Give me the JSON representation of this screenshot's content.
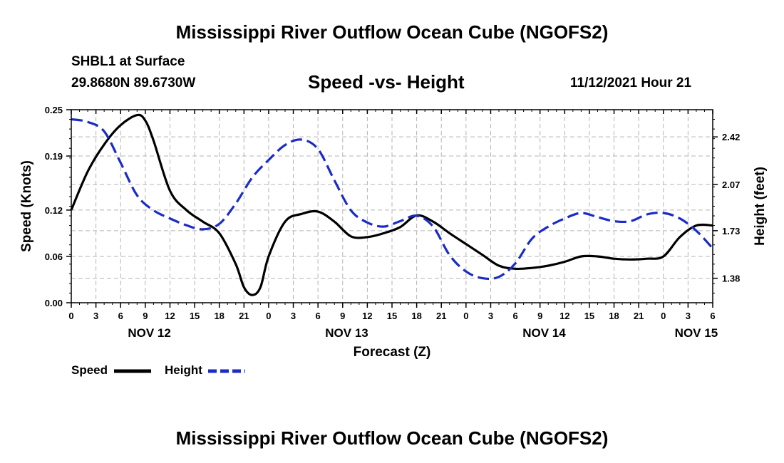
{
  "header": {
    "title": "Mississippi River Outflow Ocean Cube (NGOFS2)",
    "station": "SHBL1 at Surface",
    "coords": "29.8680N  89.6730W",
    "subtitle": "Speed -vs- Height",
    "datetime": "11/12/2021 Hour 21"
  },
  "footer": {
    "title": "Mississippi River Outflow Ocean Cube (NGOFS2)"
  },
  "legend": {
    "speed_label": "Speed",
    "height_label": "Height"
  },
  "chart_data": {
    "type": "line",
    "title": "Speed -vs- Height",
    "xlabel": "Forecast (Z)",
    "ylabel_left": "Speed (Knots)",
    "ylabel_right": "Height (feet)",
    "x_unit": "forecast hours from 00Z Nov 12",
    "xlim": [
      0,
      78
    ],
    "x_ticks": [
      0,
      3,
      6,
      9,
      12,
      15,
      18,
      21,
      24,
      27,
      30,
      33,
      36,
      39,
      42,
      45,
      48,
      51,
      54,
      57,
      60,
      63,
      66,
      69,
      72,
      75,
      78
    ],
    "x_tick_labels": [
      "0",
      "3",
      "6",
      "9",
      "12",
      "15",
      "18",
      "21",
      "0",
      "3",
      "6",
      "9",
      "12",
      "15",
      "18",
      "21",
      "0",
      "3",
      "6",
      "9",
      "12",
      "15",
      "18",
      "21",
      "0",
      "3",
      "6"
    ],
    "date_labels": [
      {
        "x": 9.5,
        "label": "NOV 12"
      },
      {
        "x": 33.5,
        "label": "NOV 13"
      },
      {
        "x": 57.5,
        "label": "NOV 14"
      },
      {
        "x": 76,
        "label": "NOV 15"
      }
    ],
    "ylim_left": [
      0,
      0.25
    ],
    "y_ticks_left": [
      0.0,
      0.06,
      0.12,
      0.19,
      0.25
    ],
    "y_tick_labels_left": [
      "0.00",
      "0.06",
      "0.12",
      "0.19",
      "0.25"
    ],
    "ylim_right": [
      1.2,
      2.62
    ],
    "y_ticks_right": [
      1.38,
      1.73,
      2.07,
      2.42
    ],
    "y_tick_labels_right": [
      "1.38",
      "1.73",
      "2.07",
      "2.42"
    ],
    "grid": true,
    "series": [
      {
        "name": "Speed",
        "axis": "left",
        "color": "#000000",
        "dash": "solid",
        "x": [
          0,
          2,
          4,
          6,
          8,
          9,
          10,
          12,
          14,
          16,
          18,
          20,
          21,
          22,
          23,
          24,
          26,
          28,
          30,
          32,
          34,
          36,
          38,
          40,
          42,
          44,
          46,
          48,
          50,
          52,
          54,
          56,
          58,
          60,
          62,
          64,
          66,
          68,
          70,
          72,
          74,
          76,
          78
        ],
        "y": [
          0.12,
          0.17,
          0.205,
          0.23,
          0.243,
          0.236,
          0.21,
          0.145,
          0.12,
          0.105,
          0.09,
          0.05,
          0.02,
          0.01,
          0.02,
          0.06,
          0.105,
          0.115,
          0.118,
          0.105,
          0.086,
          0.085,
          0.09,
          0.098,
          0.113,
          0.105,
          0.09,
          0.076,
          0.062,
          0.048,
          0.044,
          0.045,
          0.048,
          0.053,
          0.06,
          0.06,
          0.057,
          0.056,
          0.057,
          0.06,
          0.085,
          0.1,
          0.1
        ]
      },
      {
        "name": "Height",
        "axis": "right",
        "color": "#1b2bc7",
        "dash": "dashed",
        "x": [
          0,
          2,
          4,
          6,
          8,
          10,
          12,
          14,
          16,
          18,
          20,
          22,
          24,
          26,
          28,
          30,
          32,
          34,
          36,
          38,
          40,
          42,
          44,
          46,
          48,
          50,
          52,
          54,
          56,
          58,
          60,
          62,
          64,
          66,
          68,
          70,
          72,
          74,
          76,
          78
        ],
        "y": [
          2.55,
          2.53,
          2.46,
          2.23,
          1.99,
          1.88,
          1.82,
          1.77,
          1.74,
          1.78,
          1.93,
          2.12,
          2.25,
          2.36,
          2.4,
          2.33,
          2.1,
          1.88,
          1.79,
          1.76,
          1.8,
          1.84,
          1.76,
          1.55,
          1.43,
          1.38,
          1.39,
          1.49,
          1.67,
          1.76,
          1.82,
          1.86,
          1.83,
          1.8,
          1.8,
          1.85,
          1.86,
          1.82,
          1.73,
          1.6
        ]
      }
    ]
  }
}
